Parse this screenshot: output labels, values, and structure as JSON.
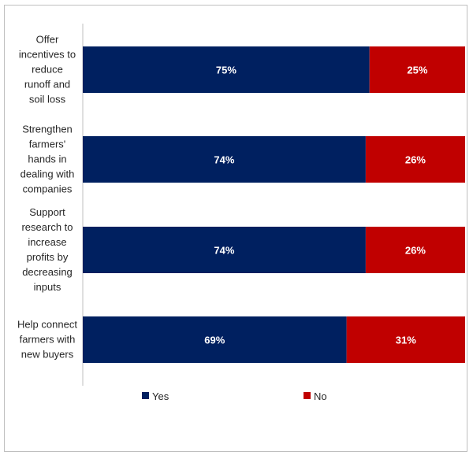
{
  "chart_data": {
    "type": "bar",
    "orientation": "horizontal",
    "stacked": true,
    "xlim": [
      0,
      100
    ],
    "categories": [
      "Offer incentives to reduce runoff and soil loss",
      "Strengthen farmers' hands in dealing with companies",
      "Support research to increase profits by decreasing inputs",
      "Help connect farmers with new buyers"
    ],
    "category_lines": [
      [
        "Offer",
        "incentives to",
        "reduce",
        "runoff and",
        "soil loss"
      ],
      [
        "Strengthen",
        "farmers'",
        "hands in",
        "dealing with",
        "companies"
      ],
      [
        "Support",
        "research to",
        "increase",
        "profits by",
        "decreasing",
        "inputs"
      ],
      [
        "Help connect",
        "farmers with",
        "new buyers"
      ]
    ],
    "series": [
      {
        "name": "Yes",
        "color": "#002060",
        "values": [
          75,
          74,
          74,
          69
        ],
        "labels": [
          "75%",
          "74%",
          "74%",
          "69%"
        ]
      },
      {
        "name": "No",
        "color": "#C00000",
        "values": [
          25,
          26,
          26,
          31
        ],
        "labels": [
          "25%",
          "26%",
          "26%",
          "31%"
        ]
      }
    ],
    "legend_position": "bottom",
    "grid": false
  }
}
